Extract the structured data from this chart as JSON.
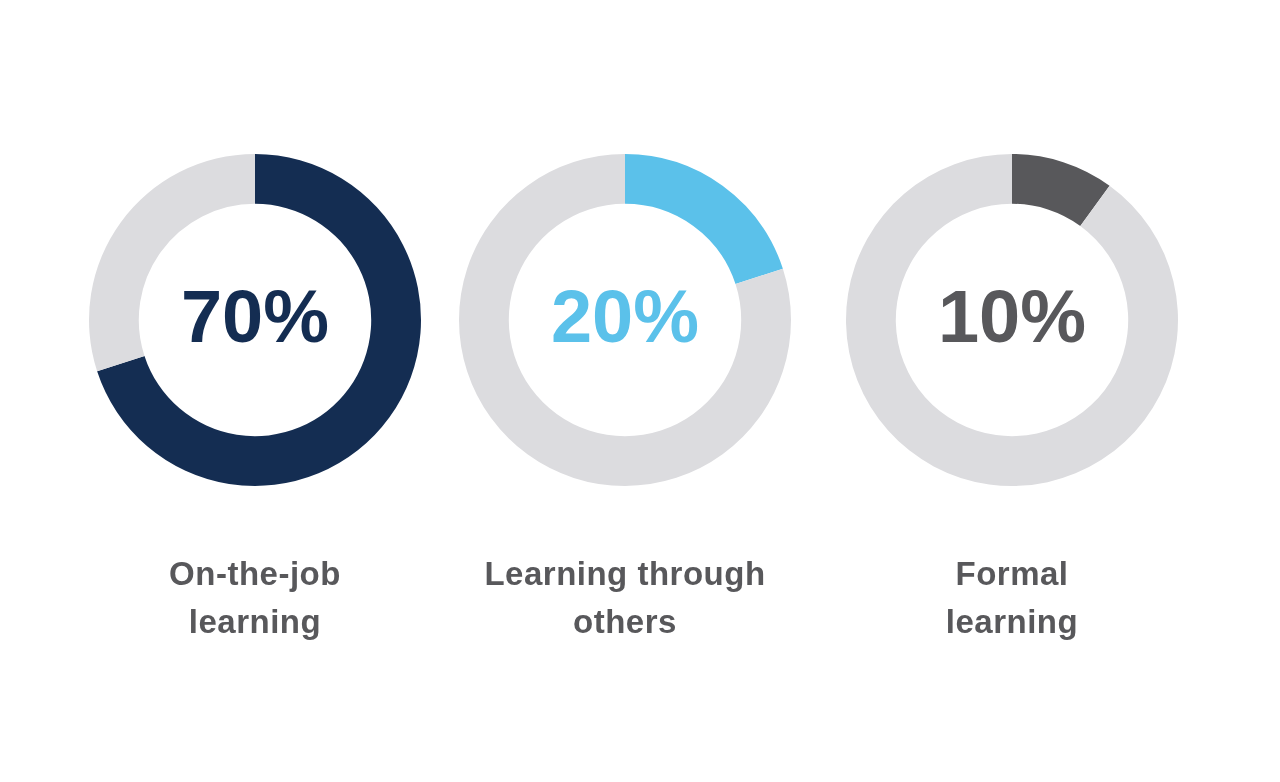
{
  "chart_data": [
    {
      "type": "donut",
      "title": "On-the-job learning",
      "categories": [
        null,
        null
      ],
      "values": [
        70,
        30
      ],
      "colors": [
        "#142d52",
        "#dcdcdf"
      ],
      "value_labels": [
        "70%",
        null
      ]
    },
    {
      "type": "donut",
      "title": "Learning through others",
      "categories": [
        null,
        null
      ],
      "values": [
        20,
        80
      ],
      "colors": [
        "#5bc1ea",
        "#dcdcdf"
      ],
      "value_labels": [
        "20%",
        null
      ]
    },
    {
      "type": "donut",
      "title": "Formal learning",
      "categories": [
        null,
        null
      ],
      "values": [
        10,
        90
      ],
      "colors": [
        "#58585b",
        "#dcdcdf"
      ],
      "value_labels": [
        "10%",
        null
      ]
    }
  ]
}
